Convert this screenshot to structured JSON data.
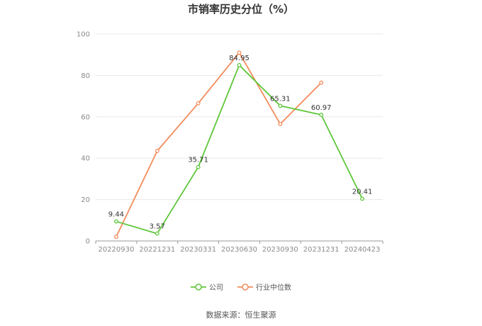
{
  "chart_data": {
    "type": "line",
    "title": "市销率历史分位（%）",
    "categories": [
      "20220930",
      "20221231",
      "20230331",
      "20230630",
      "20230930",
      "20231231",
      "20240423"
    ],
    "ylim": [
      0,
      100
    ],
    "yticks": [
      0,
      20,
      40,
      60,
      80,
      100
    ],
    "grid": true,
    "legend_position": "bottom",
    "series": [
      {
        "name": "公司",
        "color": "#5ec73a",
        "values": [
          9.44,
          3.57,
          35.71,
          84.95,
          65.31,
          60.97,
          20.41
        ],
        "labels": [
          "9.44",
          "3.57",
          "35.71",
          "84.95",
          "65.31",
          "60.97",
          "20.41"
        ]
      },
      {
        "name": "行业中位数",
        "color": "#f28c5b",
        "values": [
          2,
          43.5,
          66.5,
          91,
          56.5,
          76.5,
          null
        ]
      }
    ]
  },
  "footer": {
    "source": "数据来源：恒生聚源"
  }
}
